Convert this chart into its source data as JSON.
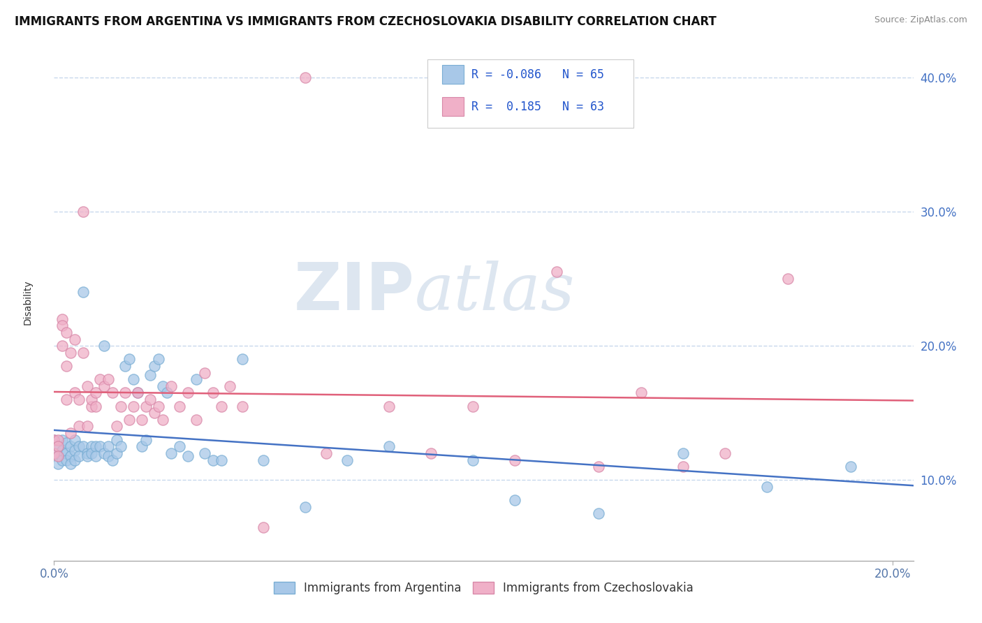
{
  "title": "IMMIGRANTS FROM ARGENTINA VS IMMIGRANTS FROM CZECHOSLOVAKIA DISABILITY CORRELATION CHART",
  "source": "Source: ZipAtlas.com",
  "ylabel": "Disability",
  "series": [
    {
      "label": "Immigrants from Argentina",
      "color": "#a8c8e8",
      "edge_color": "#7aaed4",
      "line_color": "#4472c4",
      "R": -0.086,
      "N": 65,
      "x": [
        0.0,
        0.0,
        0.001,
        0.001,
        0.001,
        0.002,
        0.002,
        0.002,
        0.003,
        0.003,
        0.003,
        0.004,
        0.004,
        0.004,
        0.005,
        0.005,
        0.005,
        0.006,
        0.006,
        0.007,
        0.007,
        0.008,
        0.008,
        0.009,
        0.009,
        0.01,
        0.01,
        0.011,
        0.012,
        0.012,
        0.013,
        0.013,
        0.014,
        0.015,
        0.015,
        0.016,
        0.017,
        0.018,
        0.019,
        0.02,
        0.021,
        0.022,
        0.023,
        0.024,
        0.025,
        0.026,
        0.027,
        0.028,
        0.03,
        0.032,
        0.034,
        0.036,
        0.038,
        0.04,
        0.045,
        0.05,
        0.06,
        0.07,
        0.08,
        0.1,
        0.11,
        0.13,
        0.15,
        0.17,
        0.19
      ],
      "y": [
        0.13,
        0.12,
        0.125,
        0.118,
        0.112,
        0.13,
        0.122,
        0.115,
        0.128,
        0.12,
        0.115,
        0.125,
        0.118,
        0.112,
        0.13,
        0.122,
        0.115,
        0.125,
        0.118,
        0.24,
        0.125,
        0.12,
        0.118,
        0.125,
        0.12,
        0.125,
        0.118,
        0.125,
        0.12,
        0.2,
        0.125,
        0.118,
        0.115,
        0.13,
        0.12,
        0.125,
        0.185,
        0.19,
        0.175,
        0.165,
        0.125,
        0.13,
        0.178,
        0.185,
        0.19,
        0.17,
        0.165,
        0.12,
        0.125,
        0.118,
        0.175,
        0.12,
        0.115,
        0.115,
        0.19,
        0.115,
        0.08,
        0.115,
        0.125,
        0.115,
        0.085,
        0.075,
        0.12,
        0.095,
        0.11
      ]
    },
    {
      "label": "Immigrants from Czechoslovakia",
      "color": "#f0b0c8",
      "edge_color": "#d888a8",
      "line_color": "#e0607a",
      "R": 0.185,
      "N": 63,
      "x": [
        0.0,
        0.0,
        0.001,
        0.001,
        0.001,
        0.002,
        0.002,
        0.002,
        0.003,
        0.003,
        0.003,
        0.004,
        0.004,
        0.005,
        0.005,
        0.006,
        0.006,
        0.007,
        0.007,
        0.008,
        0.008,
        0.009,
        0.009,
        0.01,
        0.01,
        0.011,
        0.012,
        0.013,
        0.014,
        0.015,
        0.016,
        0.017,
        0.018,
        0.019,
        0.02,
        0.021,
        0.022,
        0.023,
        0.024,
        0.025,
        0.026,
        0.028,
        0.03,
        0.032,
        0.034,
        0.036,
        0.038,
        0.04,
        0.042,
        0.045,
        0.05,
        0.06,
        0.065,
        0.08,
        0.09,
        0.1,
        0.11,
        0.12,
        0.13,
        0.14,
        0.15,
        0.16,
        0.175
      ],
      "y": [
        0.13,
        0.12,
        0.13,
        0.125,
        0.118,
        0.2,
        0.22,
        0.215,
        0.185,
        0.21,
        0.16,
        0.195,
        0.135,
        0.205,
        0.165,
        0.14,
        0.16,
        0.3,
        0.195,
        0.17,
        0.14,
        0.155,
        0.16,
        0.165,
        0.155,
        0.175,
        0.17,
        0.175,
        0.165,
        0.14,
        0.155,
        0.165,
        0.145,
        0.155,
        0.165,
        0.145,
        0.155,
        0.16,
        0.15,
        0.155,
        0.145,
        0.17,
        0.155,
        0.165,
        0.145,
        0.18,
        0.165,
        0.155,
        0.17,
        0.155,
        0.065,
        0.4,
        0.12,
        0.155,
        0.12,
        0.155,
        0.115,
        0.255,
        0.11,
        0.165,
        0.11,
        0.12,
        0.25
      ]
    }
  ],
  "xlim": [
    0.0,
    0.205
  ],
  "ylim": [
    0.04,
    0.425
  ],
  "xticks": [
    0.0,
    0.2
  ],
  "xtick_labels": [
    "0.0%",
    "20.0%"
  ],
  "yticks_right": [
    0.1,
    0.2,
    0.3,
    0.4
  ],
  "ytick_labels_right": [
    "10.0%",
    "20.0%",
    "30.0%",
    "40.0%"
  ],
  "grid_color": "#c8d8ec",
  "background_color": "#ffffff",
  "watermark_zi": "ZIP",
  "watermark_atlas": "atlas",
  "watermark_color": "#dde6f0",
  "title_fontsize": 12,
  "axis_label_fontsize": 10,
  "tick_fontsize": 12,
  "legend_fontsize": 12
}
